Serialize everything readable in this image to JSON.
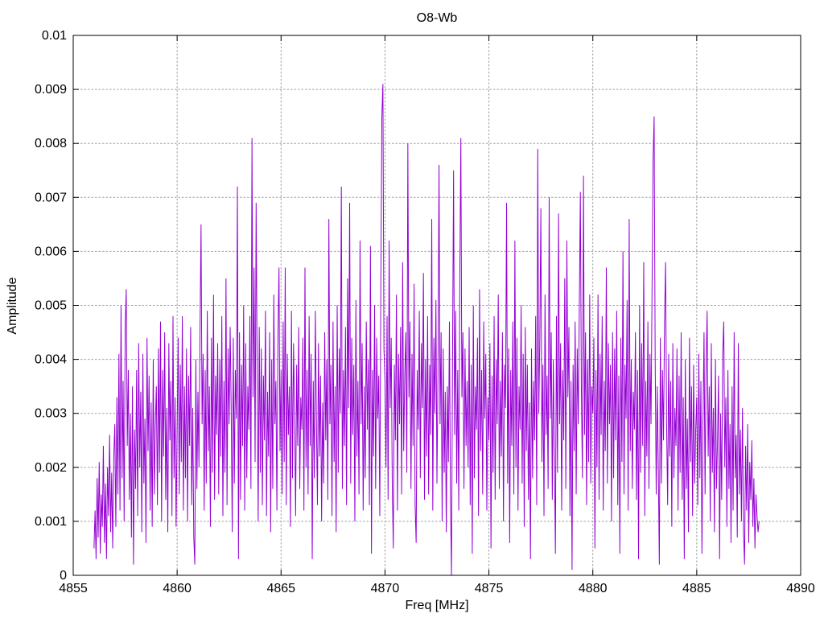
{
  "page": {
    "background": "#ffffff"
  },
  "chart_data": {
    "type": "line",
    "title": "O8-Wb",
    "xlabel": "Freq [MHz]",
    "ylabel": "Amplitude",
    "xlim": [
      4855,
      4890
    ],
    "ylim": [
      0,
      0.01
    ],
    "xticks": [
      4855,
      4860,
      4865,
      4870,
      4875,
      4880,
      4885,
      4890
    ],
    "xtick_labels": [
      "4855",
      "4860",
      "4865",
      "4870",
      "4875",
      "4880",
      "4885",
      "4890"
    ],
    "yticks": [
      0,
      0.001,
      0.002,
      0.003,
      0.004,
      0.005,
      0.006,
      0.007,
      0.008,
      0.009,
      0.01
    ],
    "ytick_labels": [
      "0",
      "0.001",
      "0.002",
      "0.003",
      "0.004",
      "0.005",
      "0.006",
      "0.007",
      "0.008",
      "0.009",
      "0.01"
    ],
    "grid": true,
    "legend": "none",
    "line_color": "#9400d3",
    "grid_color": "#a0a0a0",
    "axis_color": "#000000",
    "text_color": "#000000",
    "series": [
      {
        "name": "O8-Wb",
        "x_start": 4856.0,
        "x_step": 0.05,
        "amp_unit": 0.0001,
        "amps_e4": [
          5,
          12,
          3,
          18,
          7,
          21,
          4,
          15,
          9,
          24,
          6,
          17,
          3,
          20,
          11,
          26,
          8,
          19,
          5,
          22,
          28,
          9,
          33,
          15,
          41,
          12,
          50,
          18,
          36,
          10,
          46,
          53,
          24,
          38,
          14,
          30,
          7,
          35,
          2,
          27,
          16,
          38,
          11,
          43,
          20,
          34,
          8,
          41,
          17,
          29,
          6,
          44,
          23,
          37,
          12,
          32,
          9,
          40,
          15,
          28,
          35,
          13,
          42,
          19,
          47,
          10,
          38,
          22,
          45,
          14,
          31,
          8,
          43,
          25,
          36,
          11,
          48,
          18,
          33,
          9,
          27,
          44,
          15,
          39,
          21,
          48,
          12,
          35,
          18,
          42,
          10,
          37,
          24,
          46,
          13,
          31,
          7,
          2,
          40,
          16,
          34,
          20,
          45,
          65,
          28,
          41,
          12,
          38,
          17,
          49,
          23,
          35,
          9,
          44,
          19,
          52,
          14,
          37,
          26,
          43,
          15,
          40,
          22,
          48,
          11,
          36,
          19,
          55,
          13,
          42,
          28,
          46,
          31,
          8,
          44,
          17,
          38,
          29,
          72,
          3,
          45,
          14,
          39,
          24,
          50,
          12,
          43,
          18,
          35,
          27,
          48,
          16,
          81,
          33,
          57,
          21,
          69,
          38,
          10,
          46,
          19,
          42,
          13,
          37,
          25,
          49,
          11,
          34,
          22,
          45,
          8,
          40,
          16,
          52,
          28,
          36,
          12,
          44,
          57,
          23,
          38,
          15,
          47,
          21,
          57,
          13,
          41,
          26,
          35,
          9,
          49,
          18,
          43,
          30,
          11,
          39,
          24,
          46,
          16,
          33,
          27,
          44,
          12,
          57,
          20,
          38,
          15,
          48,
          24,
          41,
          3,
          36,
          18,
          49,
          29,
          13,
          43,
          22,
          37,
          10,
          32,
          17,
          45,
          25,
          40,
          14,
          66,
          28,
          39,
          11,
          47,
          21,
          35,
          8,
          50,
          19,
          42,
          30,
          72,
          16,
          38,
          24,
          46,
          13,
          55,
          31,
          69,
          17,
          44,
          26,
          39,
          10,
          51,
          22,
          36,
          15,
          62,
          28,
          43,
          12,
          35,
          18,
          47,
          27,
          40,
          13,
          61,
          4,
          38,
          22,
          50,
          16,
          44,
          29,
          37,
          11,
          53,
          85,
          91,
          42,
          36,
          20,
          48,
          14,
          62,
          31,
          44,
          17,
          5,
          39,
          25,
          52,
          12,
          41,
          28,
          46,
          15,
          58,
          23,
          37,
          45,
          19,
          80,
          33,
          47,
          16,
          41,
          24,
          54,
          13,
          6,
          38,
          27,
          49,
          18,
          43,
          31,
          56,
          14,
          40,
          22,
          48,
          15,
          39,
          26,
          66,
          12,
          44,
          30,
          51,
          17,
          37,
          76,
          28,
          45,
          10,
          42,
          19,
          34,
          8,
          35,
          21,
          47,
          14,
          0,
          40,
          75,
          26,
          49,
          17,
          38,
          12,
          55,
          81,
          33,
          45,
          16,
          42,
          24,
          36,
          20,
          46,
          13,
          39,
          4,
          50,
          18,
          35,
          27,
          44,
          11,
          53,
          23,
          38,
          15,
          47,
          29,
          41,
          12,
          33,
          25,
          43,
          5,
          37,
          19,
          48,
          14,
          40,
          28,
          52,
          16,
          36,
          22,
          45,
          10,
          39,
          31,
          69,
          17,
          42,
          6,
          38,
          24,
          47,
          15,
          62,
          20,
          44,
          12,
          35,
          27,
          50,
          17,
          41,
          9,
          46,
          23,
          39,
          14,
          32,
          3,
          42,
          18,
          36,
          25,
          48,
          13,
          79,
          30,
          44,
          68,
          21,
          39,
          11,
          52,
          26,
          37,
          16,
          70,
          29,
          45,
          14,
          40,
          22,
          4,
          48,
          19,
          67,
          28,
          43,
          12,
          38,
          25,
          55,
          16,
          62,
          33,
          46,
          11,
          36,
          1,
          39,
          23,
          47,
          15,
          42,
          28,
          50,
          71,
          34,
          18,
          74,
          26,
          45,
          13,
          40,
          21,
          52,
          17,
          35,
          30,
          44,
          5,
          38,
          20,
          52,
          14,
          41,
          26,
          48,
          12,
          36,
          23,
          57,
          17,
          43,
          28,
          39,
          10,
          45,
          18,
          42,
          25,
          49,
          13,
          37,
          4,
          44,
          21,
          60,
          15,
          39,
          29,
          51,
          12,
          66,
          23,
          40,
          16,
          34,
          27,
          45,
          14,
          38,
          3,
          50,
          19,
          43,
          24,
          58,
          11,
          36,
          22,
          47,
          16,
          41,
          28,
          53,
          77,
          85,
          40,
          15,
          35,
          20,
          2,
          44,
          17,
          38,
          25,
          47,
          58,
          28,
          13,
          41,
          22,
          36,
          9,
          43,
          18,
          31,
          24,
          42,
          12,
          37,
          19,
          45,
          14,
          33,
          3,
          40,
          16,
          29,
          8,
          44,
          21,
          35,
          11,
          39,
          17,
          27,
          33,
          13,
          41,
          18,
          36,
          4,
          28,
          45,
          15,
          38,
          49,
          22,
          35,
          10,
          43,
          19,
          31,
          8,
          40,
          16,
          25,
          37,
          3,
          30,
          14,
          41,
          47,
          20,
          33,
          9,
          38,
          16,
          28,
          6,
          35,
          12,
          45,
          18,
          26,
          7,
          43,
          15,
          27,
          10,
          31,
          8,
          2,
          24,
          12,
          28,
          6,
          21,
          14,
          25,
          9,
          18,
          5,
          15,
          11,
          8,
          10
        ]
      }
    ]
  }
}
